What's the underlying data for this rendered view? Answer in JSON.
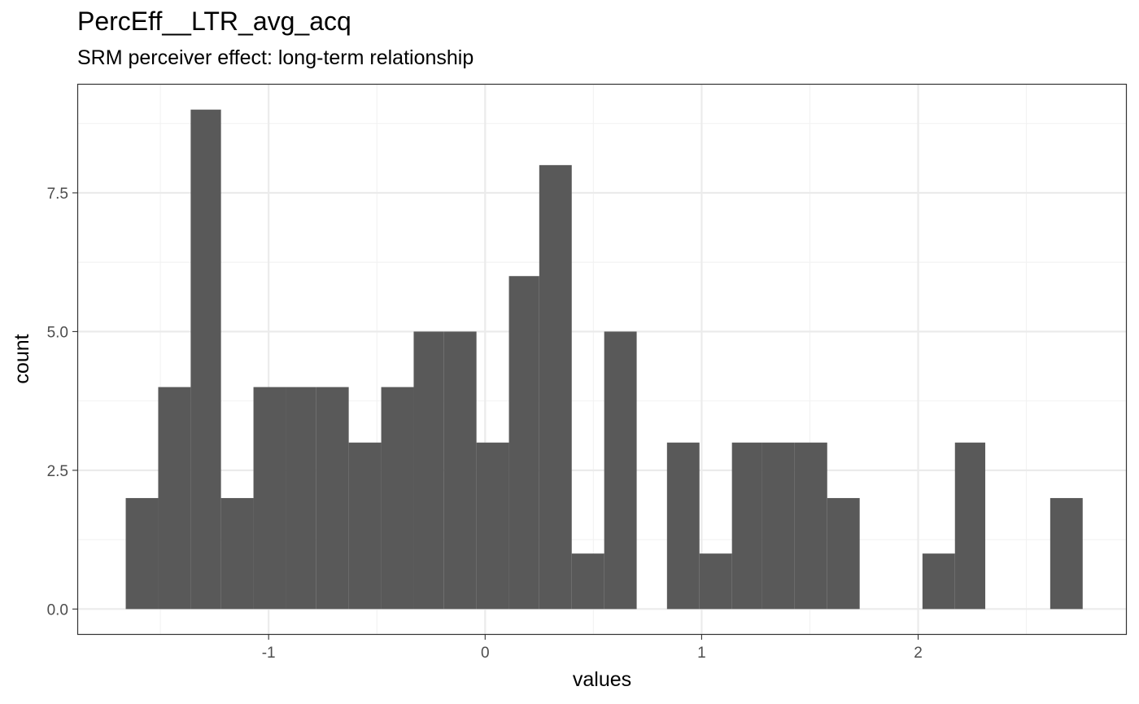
{
  "chart_data": {
    "type": "bar",
    "title": "PercEff__LTR_avg_acq",
    "subtitle": "SRM perceiver effect: long-term relationship",
    "xlabel": "values",
    "ylabel": "count",
    "xlim": [
      -1.88,
      2.96
    ],
    "ylim": [
      -0.45,
      9.45
    ],
    "x_ticks": [
      -1,
      0,
      1,
      2
    ],
    "x_tick_labels": [
      "-1",
      "0",
      "1",
      "2"
    ],
    "y_ticks": [
      0,
      2.5,
      5,
      7.5
    ],
    "y_tick_labels": [
      "0.0",
      "2.5",
      "5.0",
      "7.5"
    ],
    "grid": true,
    "bar_color": "#595959",
    "bins": [
      {
        "x0": -1.66,
        "x1": -1.51,
        "count": 2
      },
      {
        "x0": -1.51,
        "x1": -1.36,
        "count": 4
      },
      {
        "x0": -1.36,
        "x1": -1.22,
        "count": 9
      },
      {
        "x0": -1.22,
        "x1": -1.07,
        "count": 2
      },
      {
        "x0": -1.07,
        "x1": -0.92,
        "count": 4
      },
      {
        "x0": -0.92,
        "x1": -0.78,
        "count": 4
      },
      {
        "x0": -0.78,
        "x1": -0.63,
        "count": 4
      },
      {
        "x0": -0.63,
        "x1": -0.48,
        "count": 3
      },
      {
        "x0": -0.48,
        "x1": -0.33,
        "count": 4
      },
      {
        "x0": -0.33,
        "x1": -0.19,
        "count": 5
      },
      {
        "x0": -0.19,
        "x1": -0.04,
        "count": 5
      },
      {
        "x0": -0.04,
        "x1": 0.11,
        "count": 3
      },
      {
        "x0": 0.11,
        "x1": 0.25,
        "count": 6
      },
      {
        "x0": 0.25,
        "x1": 0.4,
        "count": 8
      },
      {
        "x0": 0.4,
        "x1": 0.55,
        "count": 1
      },
      {
        "x0": 0.55,
        "x1": 0.7,
        "count": 5
      },
      {
        "x0": 0.7,
        "x1": 0.84,
        "count": 0
      },
      {
        "x0": 0.84,
        "x1": 0.99,
        "count": 3
      },
      {
        "x0": 0.99,
        "x1": 1.14,
        "count": 1
      },
      {
        "x0": 1.14,
        "x1": 1.28,
        "count": 3
      },
      {
        "x0": 1.28,
        "x1": 1.43,
        "count": 3
      },
      {
        "x0": 1.43,
        "x1": 1.58,
        "count": 3
      },
      {
        "x0": 1.58,
        "x1": 1.73,
        "count": 2
      },
      {
        "x0": 1.73,
        "x1": 1.87,
        "count": 0
      },
      {
        "x0": 1.87,
        "x1": 2.02,
        "count": 0
      },
      {
        "x0": 2.02,
        "x1": 2.17,
        "count": 1
      },
      {
        "x0": 2.17,
        "x1": 2.31,
        "count": 3
      },
      {
        "x0": 2.31,
        "x1": 2.46,
        "count": 0
      },
      {
        "x0": 2.46,
        "x1": 2.61,
        "count": 0
      },
      {
        "x0": 2.61,
        "x1": 2.76,
        "count": 2
      }
    ]
  }
}
